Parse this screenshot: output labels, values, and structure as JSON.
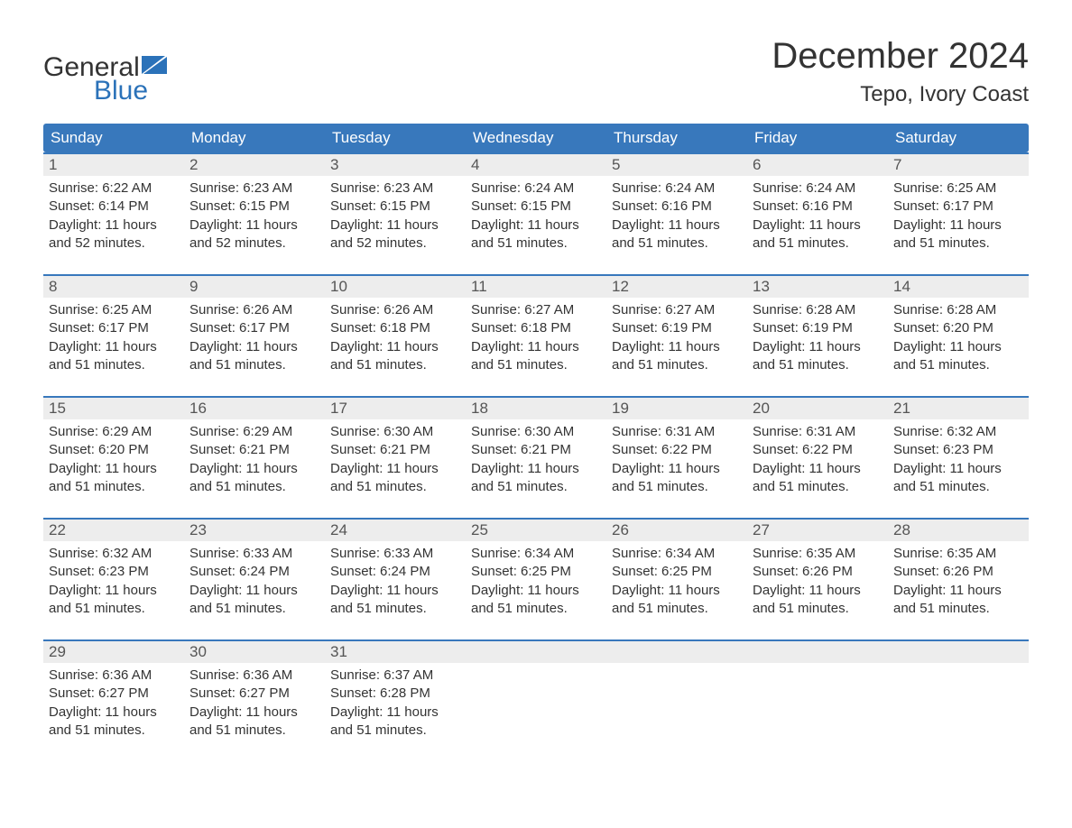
{
  "brand": {
    "general": "General",
    "blue": "Blue"
  },
  "title": {
    "month": "December 2024",
    "location": "Tepo, Ivory Coast"
  },
  "colors": {
    "header_bg": "#3878bc",
    "header_text": "#ffffff",
    "daynum_bg": "#ededed",
    "daynum_text": "#555555",
    "body_text": "#333333",
    "accent": "#2b72b9",
    "row_border": "#3878bc",
    "page_bg": "#ffffff"
  },
  "fonts": {
    "month_title_pt": 40,
    "location_pt": 24,
    "weekday_pt": 17,
    "daynum_pt": 17,
    "body_pt": 15,
    "logo_pt": 30
  },
  "weekdays": [
    "Sunday",
    "Monday",
    "Tuesday",
    "Wednesday",
    "Thursday",
    "Friday",
    "Saturday"
  ],
  "weeks": [
    [
      {
        "n": "1",
        "sr": "Sunrise: 6:22 AM",
        "ss": "Sunset: 6:14 PM",
        "dl": "Daylight: 11 hours and 52 minutes."
      },
      {
        "n": "2",
        "sr": "Sunrise: 6:23 AM",
        "ss": "Sunset: 6:15 PM",
        "dl": "Daylight: 11 hours and 52 minutes."
      },
      {
        "n": "3",
        "sr": "Sunrise: 6:23 AM",
        "ss": "Sunset: 6:15 PM",
        "dl": "Daylight: 11 hours and 52 minutes."
      },
      {
        "n": "4",
        "sr": "Sunrise: 6:24 AM",
        "ss": "Sunset: 6:15 PM",
        "dl": "Daylight: 11 hours and 51 minutes."
      },
      {
        "n": "5",
        "sr": "Sunrise: 6:24 AM",
        "ss": "Sunset: 6:16 PM",
        "dl": "Daylight: 11 hours and 51 minutes."
      },
      {
        "n": "6",
        "sr": "Sunrise: 6:24 AM",
        "ss": "Sunset: 6:16 PM",
        "dl": "Daylight: 11 hours and 51 minutes."
      },
      {
        "n": "7",
        "sr": "Sunrise: 6:25 AM",
        "ss": "Sunset: 6:17 PM",
        "dl": "Daylight: 11 hours and 51 minutes."
      }
    ],
    [
      {
        "n": "8",
        "sr": "Sunrise: 6:25 AM",
        "ss": "Sunset: 6:17 PM",
        "dl": "Daylight: 11 hours and 51 minutes."
      },
      {
        "n": "9",
        "sr": "Sunrise: 6:26 AM",
        "ss": "Sunset: 6:17 PM",
        "dl": "Daylight: 11 hours and 51 minutes."
      },
      {
        "n": "10",
        "sr": "Sunrise: 6:26 AM",
        "ss": "Sunset: 6:18 PM",
        "dl": "Daylight: 11 hours and 51 minutes."
      },
      {
        "n": "11",
        "sr": "Sunrise: 6:27 AM",
        "ss": "Sunset: 6:18 PM",
        "dl": "Daylight: 11 hours and 51 minutes."
      },
      {
        "n": "12",
        "sr": "Sunrise: 6:27 AM",
        "ss": "Sunset: 6:19 PM",
        "dl": "Daylight: 11 hours and 51 minutes."
      },
      {
        "n": "13",
        "sr": "Sunrise: 6:28 AM",
        "ss": "Sunset: 6:19 PM",
        "dl": "Daylight: 11 hours and 51 minutes."
      },
      {
        "n": "14",
        "sr": "Sunrise: 6:28 AM",
        "ss": "Sunset: 6:20 PM",
        "dl": "Daylight: 11 hours and 51 minutes."
      }
    ],
    [
      {
        "n": "15",
        "sr": "Sunrise: 6:29 AM",
        "ss": "Sunset: 6:20 PM",
        "dl": "Daylight: 11 hours and 51 minutes."
      },
      {
        "n": "16",
        "sr": "Sunrise: 6:29 AM",
        "ss": "Sunset: 6:21 PM",
        "dl": "Daylight: 11 hours and 51 minutes."
      },
      {
        "n": "17",
        "sr": "Sunrise: 6:30 AM",
        "ss": "Sunset: 6:21 PM",
        "dl": "Daylight: 11 hours and 51 minutes."
      },
      {
        "n": "18",
        "sr": "Sunrise: 6:30 AM",
        "ss": "Sunset: 6:21 PM",
        "dl": "Daylight: 11 hours and 51 minutes."
      },
      {
        "n": "19",
        "sr": "Sunrise: 6:31 AM",
        "ss": "Sunset: 6:22 PM",
        "dl": "Daylight: 11 hours and 51 minutes."
      },
      {
        "n": "20",
        "sr": "Sunrise: 6:31 AM",
        "ss": "Sunset: 6:22 PM",
        "dl": "Daylight: 11 hours and 51 minutes."
      },
      {
        "n": "21",
        "sr": "Sunrise: 6:32 AM",
        "ss": "Sunset: 6:23 PM",
        "dl": "Daylight: 11 hours and 51 minutes."
      }
    ],
    [
      {
        "n": "22",
        "sr": "Sunrise: 6:32 AM",
        "ss": "Sunset: 6:23 PM",
        "dl": "Daylight: 11 hours and 51 minutes."
      },
      {
        "n": "23",
        "sr": "Sunrise: 6:33 AM",
        "ss": "Sunset: 6:24 PM",
        "dl": "Daylight: 11 hours and 51 minutes."
      },
      {
        "n": "24",
        "sr": "Sunrise: 6:33 AM",
        "ss": "Sunset: 6:24 PM",
        "dl": "Daylight: 11 hours and 51 minutes."
      },
      {
        "n": "25",
        "sr": "Sunrise: 6:34 AM",
        "ss": "Sunset: 6:25 PM",
        "dl": "Daylight: 11 hours and 51 minutes."
      },
      {
        "n": "26",
        "sr": "Sunrise: 6:34 AM",
        "ss": "Sunset: 6:25 PM",
        "dl": "Daylight: 11 hours and 51 minutes."
      },
      {
        "n": "27",
        "sr": "Sunrise: 6:35 AM",
        "ss": "Sunset: 6:26 PM",
        "dl": "Daylight: 11 hours and 51 minutes."
      },
      {
        "n": "28",
        "sr": "Sunrise: 6:35 AM",
        "ss": "Sunset: 6:26 PM",
        "dl": "Daylight: 11 hours and 51 minutes."
      }
    ],
    [
      {
        "n": "29",
        "sr": "Sunrise: 6:36 AM",
        "ss": "Sunset: 6:27 PM",
        "dl": "Daylight: 11 hours and 51 minutes."
      },
      {
        "n": "30",
        "sr": "Sunrise: 6:36 AM",
        "ss": "Sunset: 6:27 PM",
        "dl": "Daylight: 11 hours and 51 minutes."
      },
      {
        "n": "31",
        "sr": "Sunrise: 6:37 AM",
        "ss": "Sunset: 6:28 PM",
        "dl": "Daylight: 11 hours and 51 minutes."
      },
      {
        "n": "",
        "sr": "",
        "ss": "",
        "dl": ""
      },
      {
        "n": "",
        "sr": "",
        "ss": "",
        "dl": ""
      },
      {
        "n": "",
        "sr": "",
        "ss": "",
        "dl": ""
      },
      {
        "n": "",
        "sr": "",
        "ss": "",
        "dl": ""
      }
    ]
  ]
}
